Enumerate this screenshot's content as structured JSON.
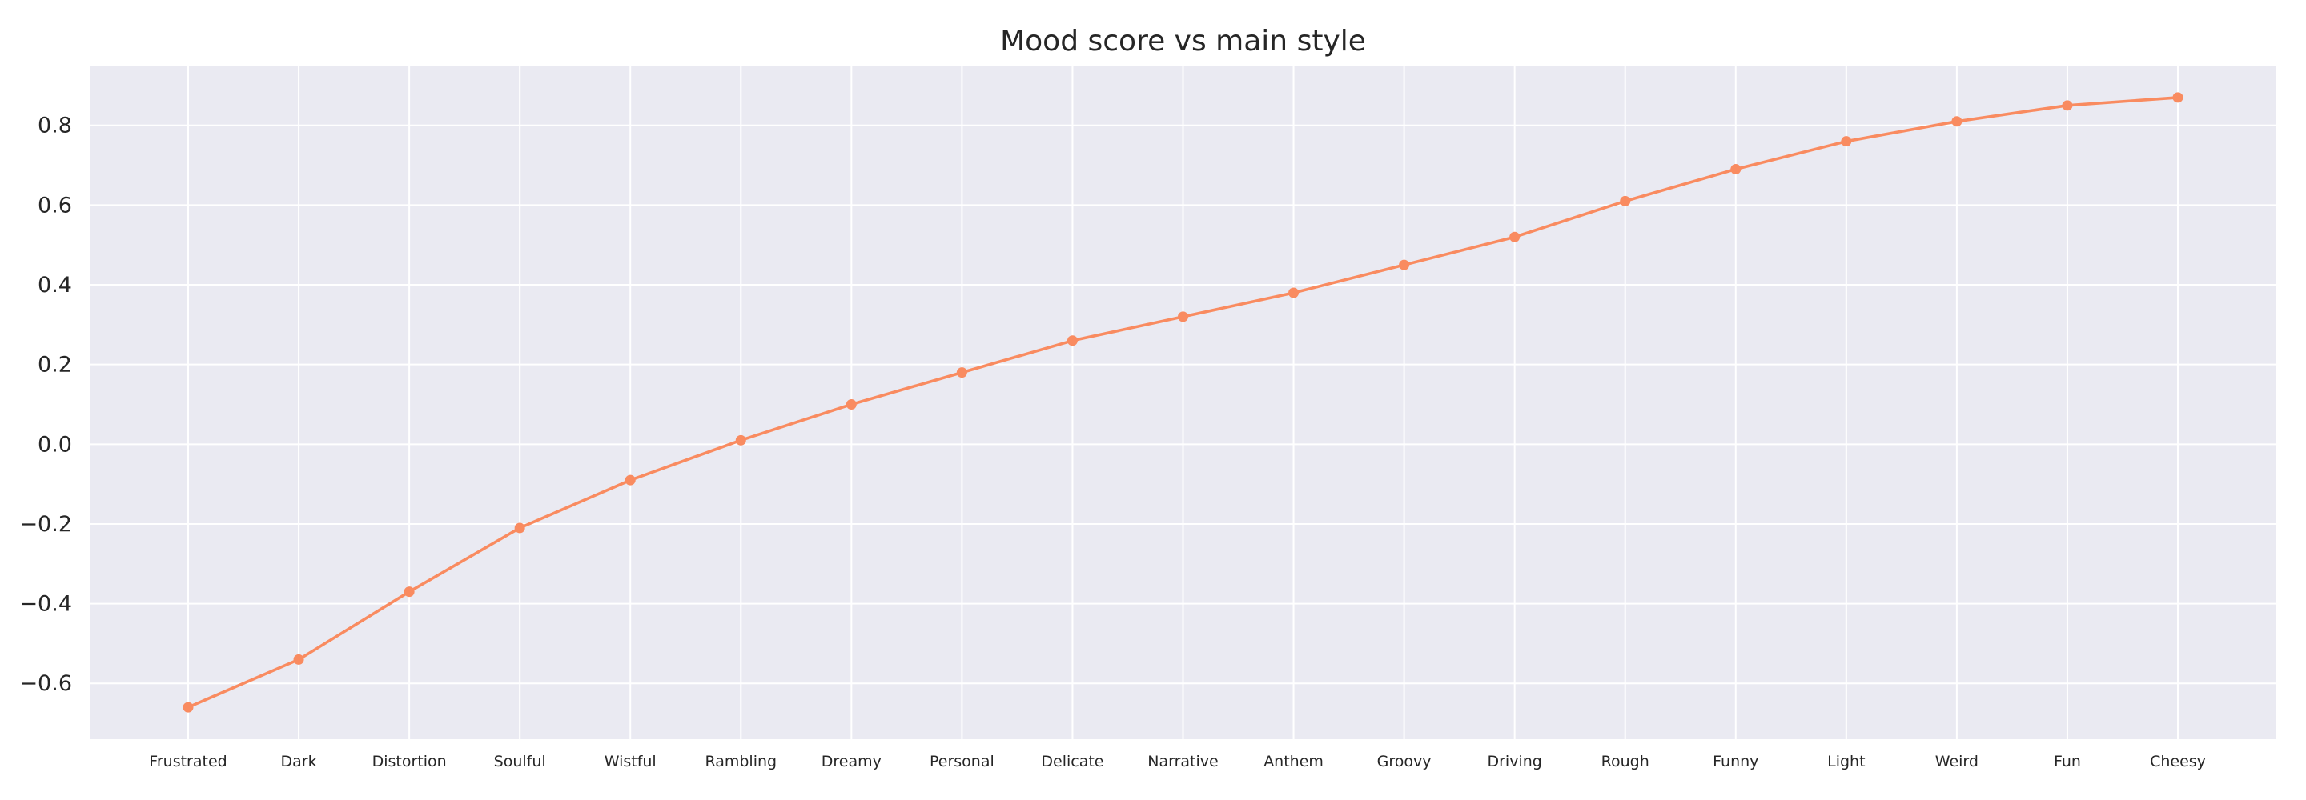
{
  "chart_data": {
    "type": "line",
    "title": "Mood score vs main style",
    "xlabel": "",
    "ylabel": "",
    "categories": [
      "Frustrated",
      "Dark",
      "Distortion",
      "Soulful",
      "Wistful",
      "Rambling",
      "Dreamy",
      "Personal",
      "Delicate",
      "Narrative",
      "Anthem",
      "Groovy",
      "Driving",
      "Rough",
      "Funny",
      "Light",
      "Weird",
      "Fun",
      "Cheesy"
    ],
    "series": [
      {
        "values": [
          -0.66,
          -0.54,
          -0.37,
          -0.21,
          -0.09,
          0.01,
          0.1,
          0.18,
          0.26,
          0.32,
          0.38,
          0.45,
          0.52,
          0.61,
          0.69,
          0.76,
          0.81,
          0.85,
          0.87
        ],
        "color": "#f98b60"
      }
    ],
    "yticks": [
      "−0.6",
      "−0.4",
      "−0.2",
      "0.0",
      "0.2",
      "0.4",
      "0.6",
      "0.8"
    ],
    "ytick_values": [
      -0.6,
      -0.4,
      -0.2,
      0.0,
      0.2,
      0.4,
      0.6,
      0.8
    ],
    "ylim": [
      -0.74,
      0.95
    ],
    "grid": true,
    "background_color": "#eaeaf2",
    "grid_color": "#ffffff"
  }
}
